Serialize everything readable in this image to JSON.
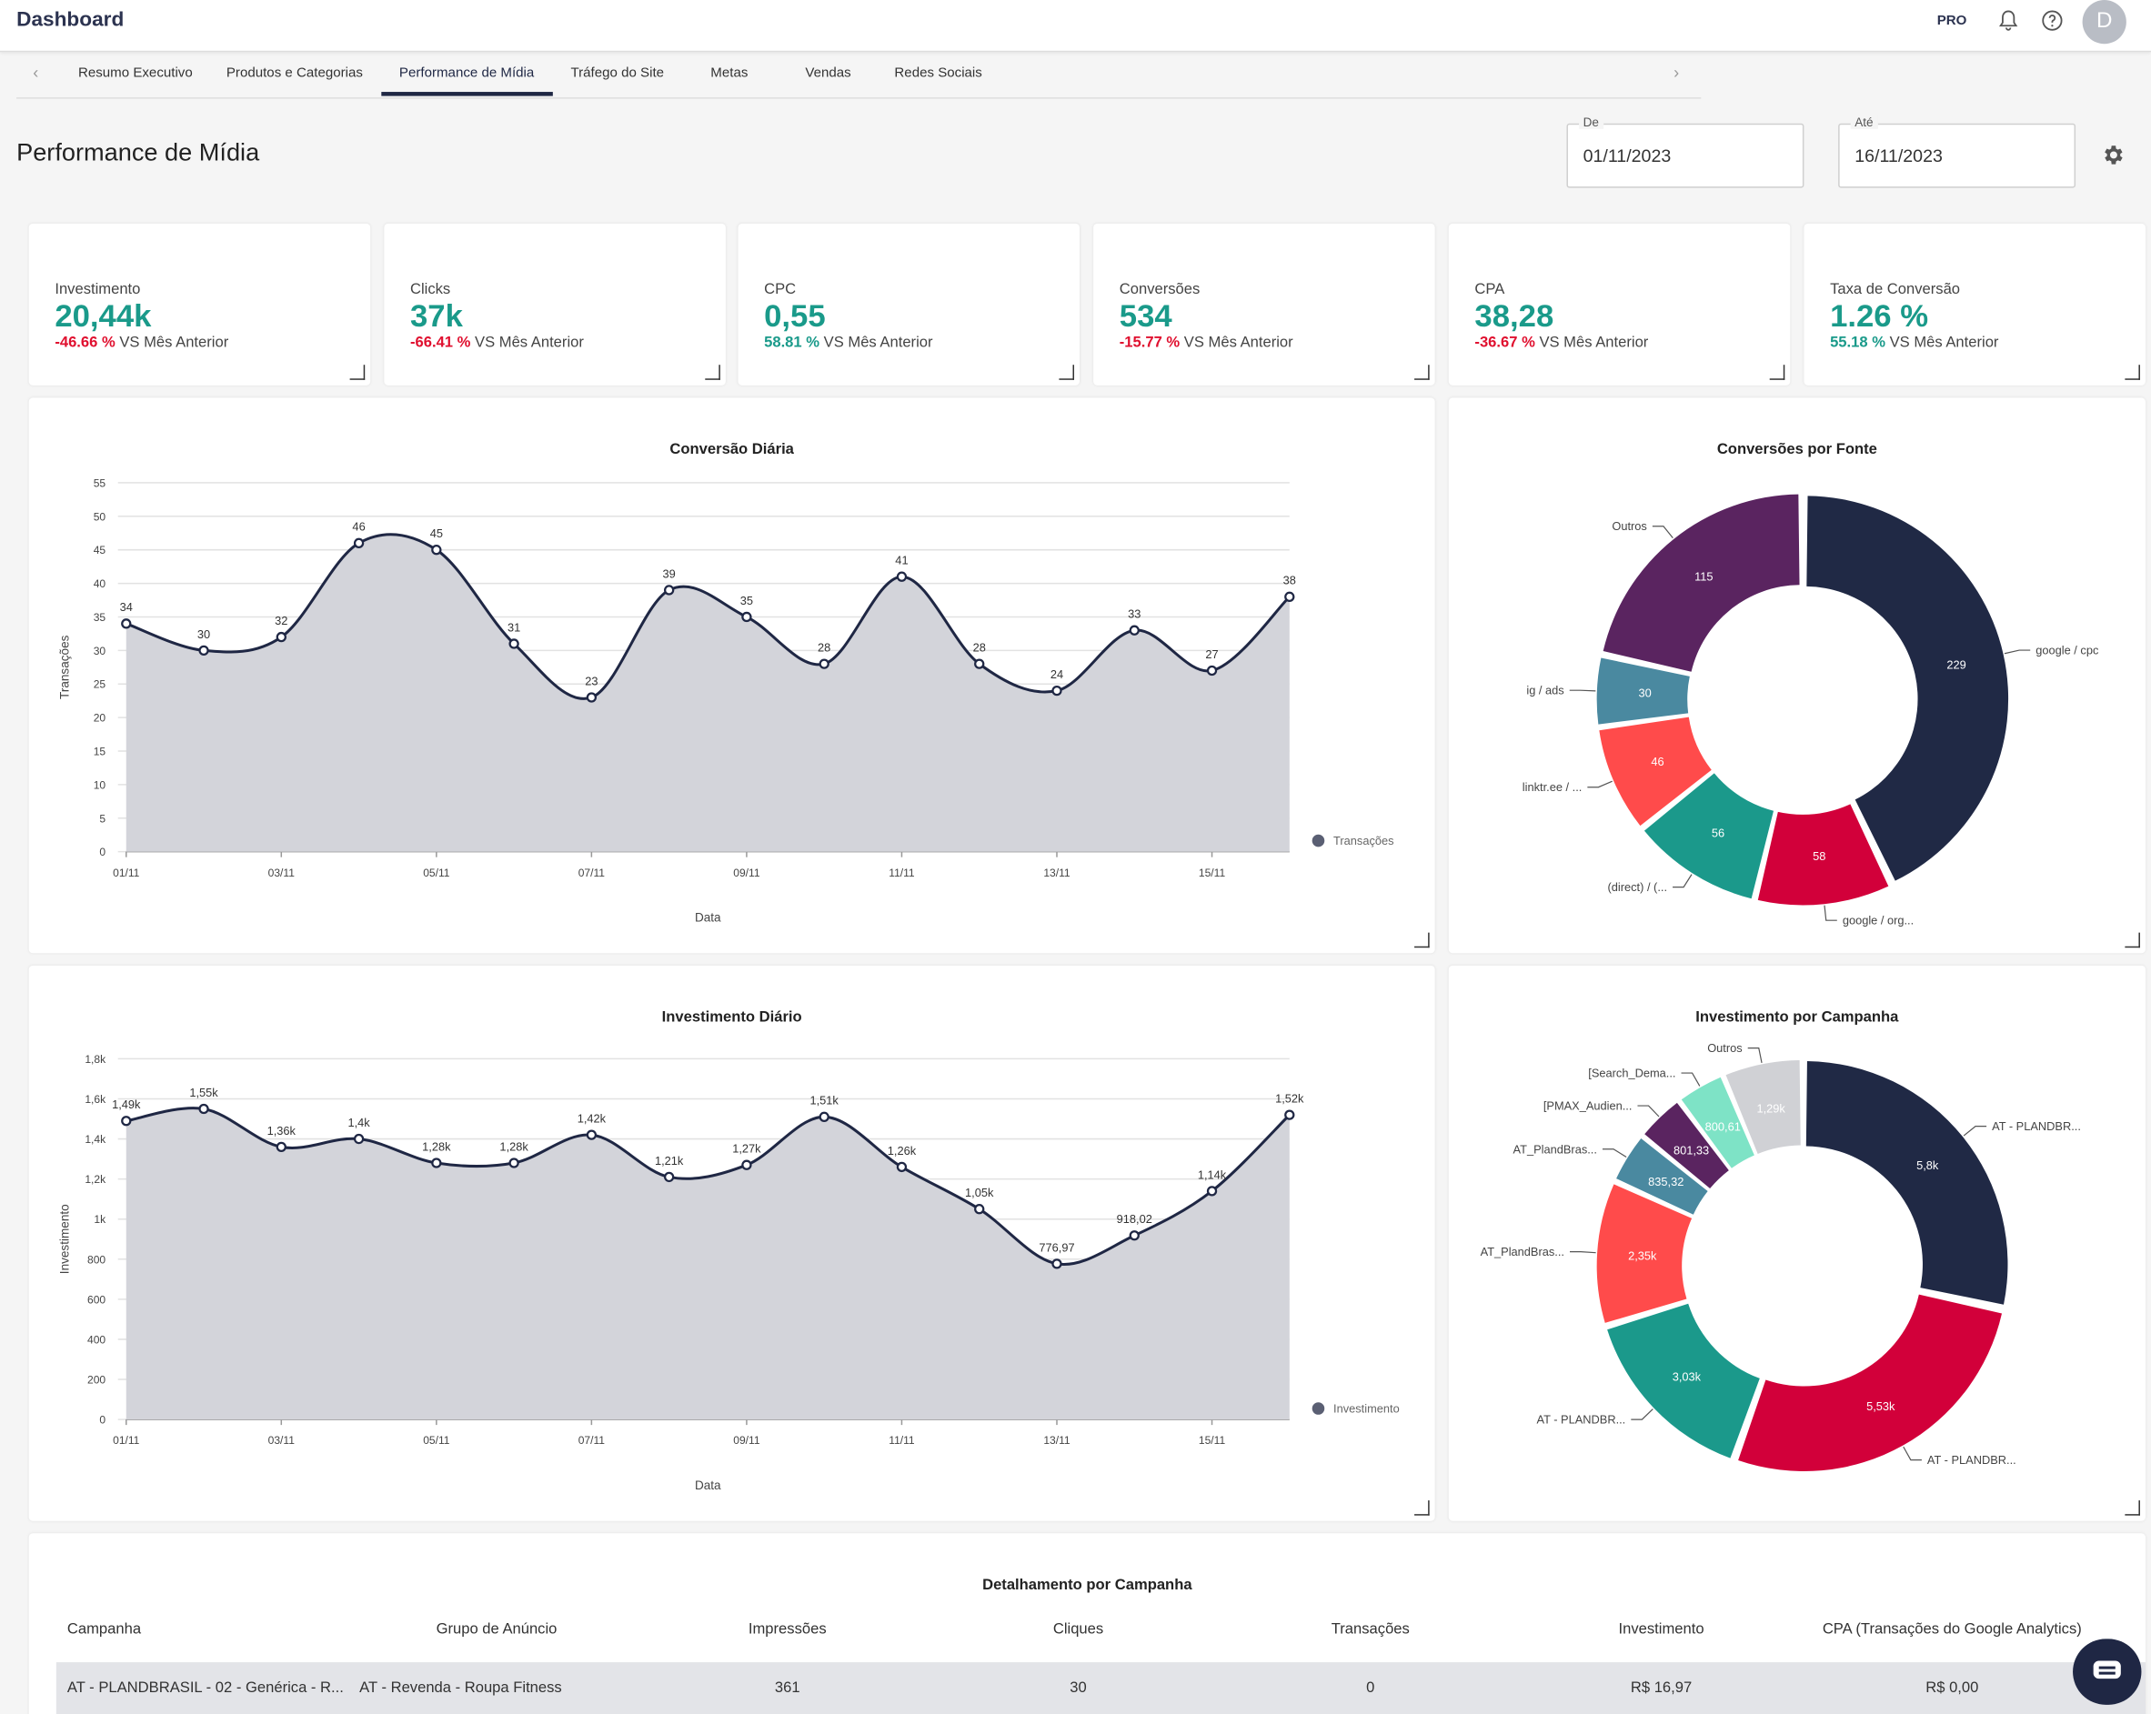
{
  "header": {
    "title": "Dashboard",
    "plan_badge": "PRO",
    "avatar_initial": "D"
  },
  "tabs": [
    "Resumo Executivo",
    "Produtos e Categorias",
    "Performance de Mídia",
    "Tráfego do Site",
    "Metas",
    "Vendas",
    "Redes Sociais"
  ],
  "active_tab": "Performance de Mídia",
  "page_title": "Performance de Mídia",
  "date_from": {
    "label": "De",
    "value": "01/11/2023"
  },
  "date_to": {
    "label": "Até",
    "value": "16/11/2023"
  },
  "colors": {
    "accent": "#1a9a8a",
    "negative": "#e0102f",
    "navy": "#1f2744"
  },
  "kpis": [
    {
      "label": "Investimento",
      "value": "20,44k",
      "change": "-46.66 %",
      "trend": "negative",
      "suffix": " VS Mês Anterior"
    },
    {
      "label": "Clicks",
      "value": "37k",
      "change": "-66.41 %",
      "trend": "negative",
      "suffix": " VS Mês Anterior"
    },
    {
      "label": "CPC",
      "value": "0,55",
      "change": "58.81 %",
      "trend": "positive",
      "suffix": " VS Mês Anterior"
    },
    {
      "label": "Conversões",
      "value": "534",
      "change": "-15.77 %",
      "trend": "negative",
      "suffix": " VS Mês Anterior"
    },
    {
      "label": "CPA",
      "value": "38,28",
      "change": "-36.67 %",
      "trend": "negative",
      "suffix": " VS Mês Anterior"
    },
    {
      "label": "Taxa de Conversão",
      "value": "1.26 %",
      "change": "55.18 %",
      "trend": "positive",
      "suffix": " VS Mês Anterior"
    }
  ],
  "chart_data": [
    {
      "type": "area",
      "title": "Conversão Diária",
      "xlabel": "Data",
      "ylabel": "Transações",
      "x": [
        "01/11",
        "02/11",
        "03/11",
        "04/11",
        "05/11",
        "06/11",
        "07/11",
        "08/11",
        "09/11",
        "10/11",
        "11/11",
        "12/11",
        "13/11",
        "14/11",
        "15/11",
        "16/11"
      ],
      "x_tick_labels": [
        "01/11",
        "03/11",
        "05/11",
        "07/11",
        "09/11",
        "11/11",
        "13/11",
        "15/11"
      ],
      "series": [
        {
          "name": "Transações",
          "values": [
            34,
            30,
            32,
            46,
            45,
            31,
            23,
            39,
            35,
            28,
            41,
            28,
            24,
            33,
            27,
            38
          ],
          "labels": [
            "34",
            "30",
            "32",
            "46",
            "45",
            "31",
            "23",
            "39",
            "35",
            "28",
            "41",
            "28",
            "24",
            "33",
            "27",
            "38"
          ]
        }
      ],
      "ylim": [
        0,
        55
      ],
      "y_tick_labels": [
        "0",
        "5",
        "10",
        "15",
        "20",
        "25",
        "30",
        "35",
        "40",
        "45",
        "50",
        "55"
      ],
      "y_tick_values": [
        0,
        5,
        10,
        15,
        20,
        25,
        30,
        35,
        40,
        45,
        50,
        55
      ],
      "grid": true,
      "legend": "right"
    },
    {
      "type": "donut",
      "title": "Conversões por Fonte",
      "categories": [
        "google / cpc",
        "google / org...",
        "(direct) / (...",
        "linktr.ee / ...",
        "ig / ads",
        "Outros"
      ],
      "values": [
        229,
        58,
        56,
        46,
        30,
        115
      ],
      "labels": [
        "229",
        "58",
        "56",
        "46",
        "30",
        "115"
      ],
      "colors": [
        "#202945",
        "#d2003a",
        "#1b998b",
        "#ff4b4b",
        "#4a89a0",
        "#5a2460"
      ]
    },
    {
      "type": "area",
      "title": "Investimento Diário",
      "xlabel": "Data",
      "ylabel": "Investimento",
      "x": [
        "01/11",
        "02/11",
        "03/11",
        "04/11",
        "05/11",
        "06/11",
        "07/11",
        "08/11",
        "09/11",
        "10/11",
        "11/11",
        "12/11",
        "13/11",
        "14/11",
        "15/11",
        "16/11"
      ],
      "x_tick_labels": [
        "01/11",
        "03/11",
        "05/11",
        "07/11",
        "09/11",
        "11/11",
        "13/11",
        "15/11"
      ],
      "series": [
        {
          "name": "Investimento",
          "values": [
            1490,
            1550,
            1360,
            1400,
            1280,
            1280,
            1420,
            1210,
            1270,
            1510,
            1260,
            1050,
            776.97,
            918.02,
            1140,
            1520
          ],
          "labels": [
            "1,49k",
            "1,55k",
            "1,36k",
            "1,4k",
            "1,28k",
            "1,28k",
            "1,42k",
            "1,21k",
            "1,27k",
            "1,51k",
            "1,26k",
            "1,05k",
            "776,97",
            "918,02",
            "1,14k",
            "1,52k"
          ]
        }
      ],
      "ylim": [
        0,
        1800
      ],
      "y_tick_labels": [
        "0",
        "200",
        "400",
        "600",
        "800",
        "1k",
        "1,2k",
        "1,4k",
        "1,6k",
        "1,8k"
      ],
      "y_tick_values": [
        0,
        200,
        400,
        600,
        800,
        1000,
        1200,
        1400,
        1600,
        1800
      ],
      "grid": true,
      "legend": "right"
    },
    {
      "type": "donut",
      "title": "Investimento por Campanha",
      "categories": [
        "AT - PLANDBR...",
        "AT - PLANDBR...",
        "AT - PLANDBR...",
        "AT_PlandBras...",
        "AT_PlandBras...",
        "[PMAX_Audien...",
        "[Search_Dema...",
        "Outros"
      ],
      "values": [
        5800,
        5530,
        3030,
        2350,
        835.32,
        801.33,
        800.61,
        1290
      ],
      "labels": [
        "5,8k",
        "5,53k",
        "3,03k",
        "2,35k",
        "835,32",
        "801,33",
        "800,61",
        "1,29k"
      ],
      "colors": [
        "#202945",
        "#d2003a",
        "#1b998b",
        "#ff4b4b",
        "#4a89a0",
        "#5a2460",
        "#7ee3c6",
        "#d0d1d5"
      ]
    }
  ],
  "table": {
    "title": "Detalhamento por Campanha",
    "columns": [
      "Campanha",
      "Grupo de Anúncio",
      "Impressões",
      "Cliques",
      "Transações",
      "Investimento",
      "CPA (Transações do Google Analytics)"
    ],
    "rows": [
      [
        "AT - PLANDBRASIL - 02 - Genérica - R...",
        "AT - Revenda - Roupa Fitness",
        "361",
        "30",
        "0",
        "R$ 16,97",
        "R$ 0,00"
      ]
    ]
  }
}
